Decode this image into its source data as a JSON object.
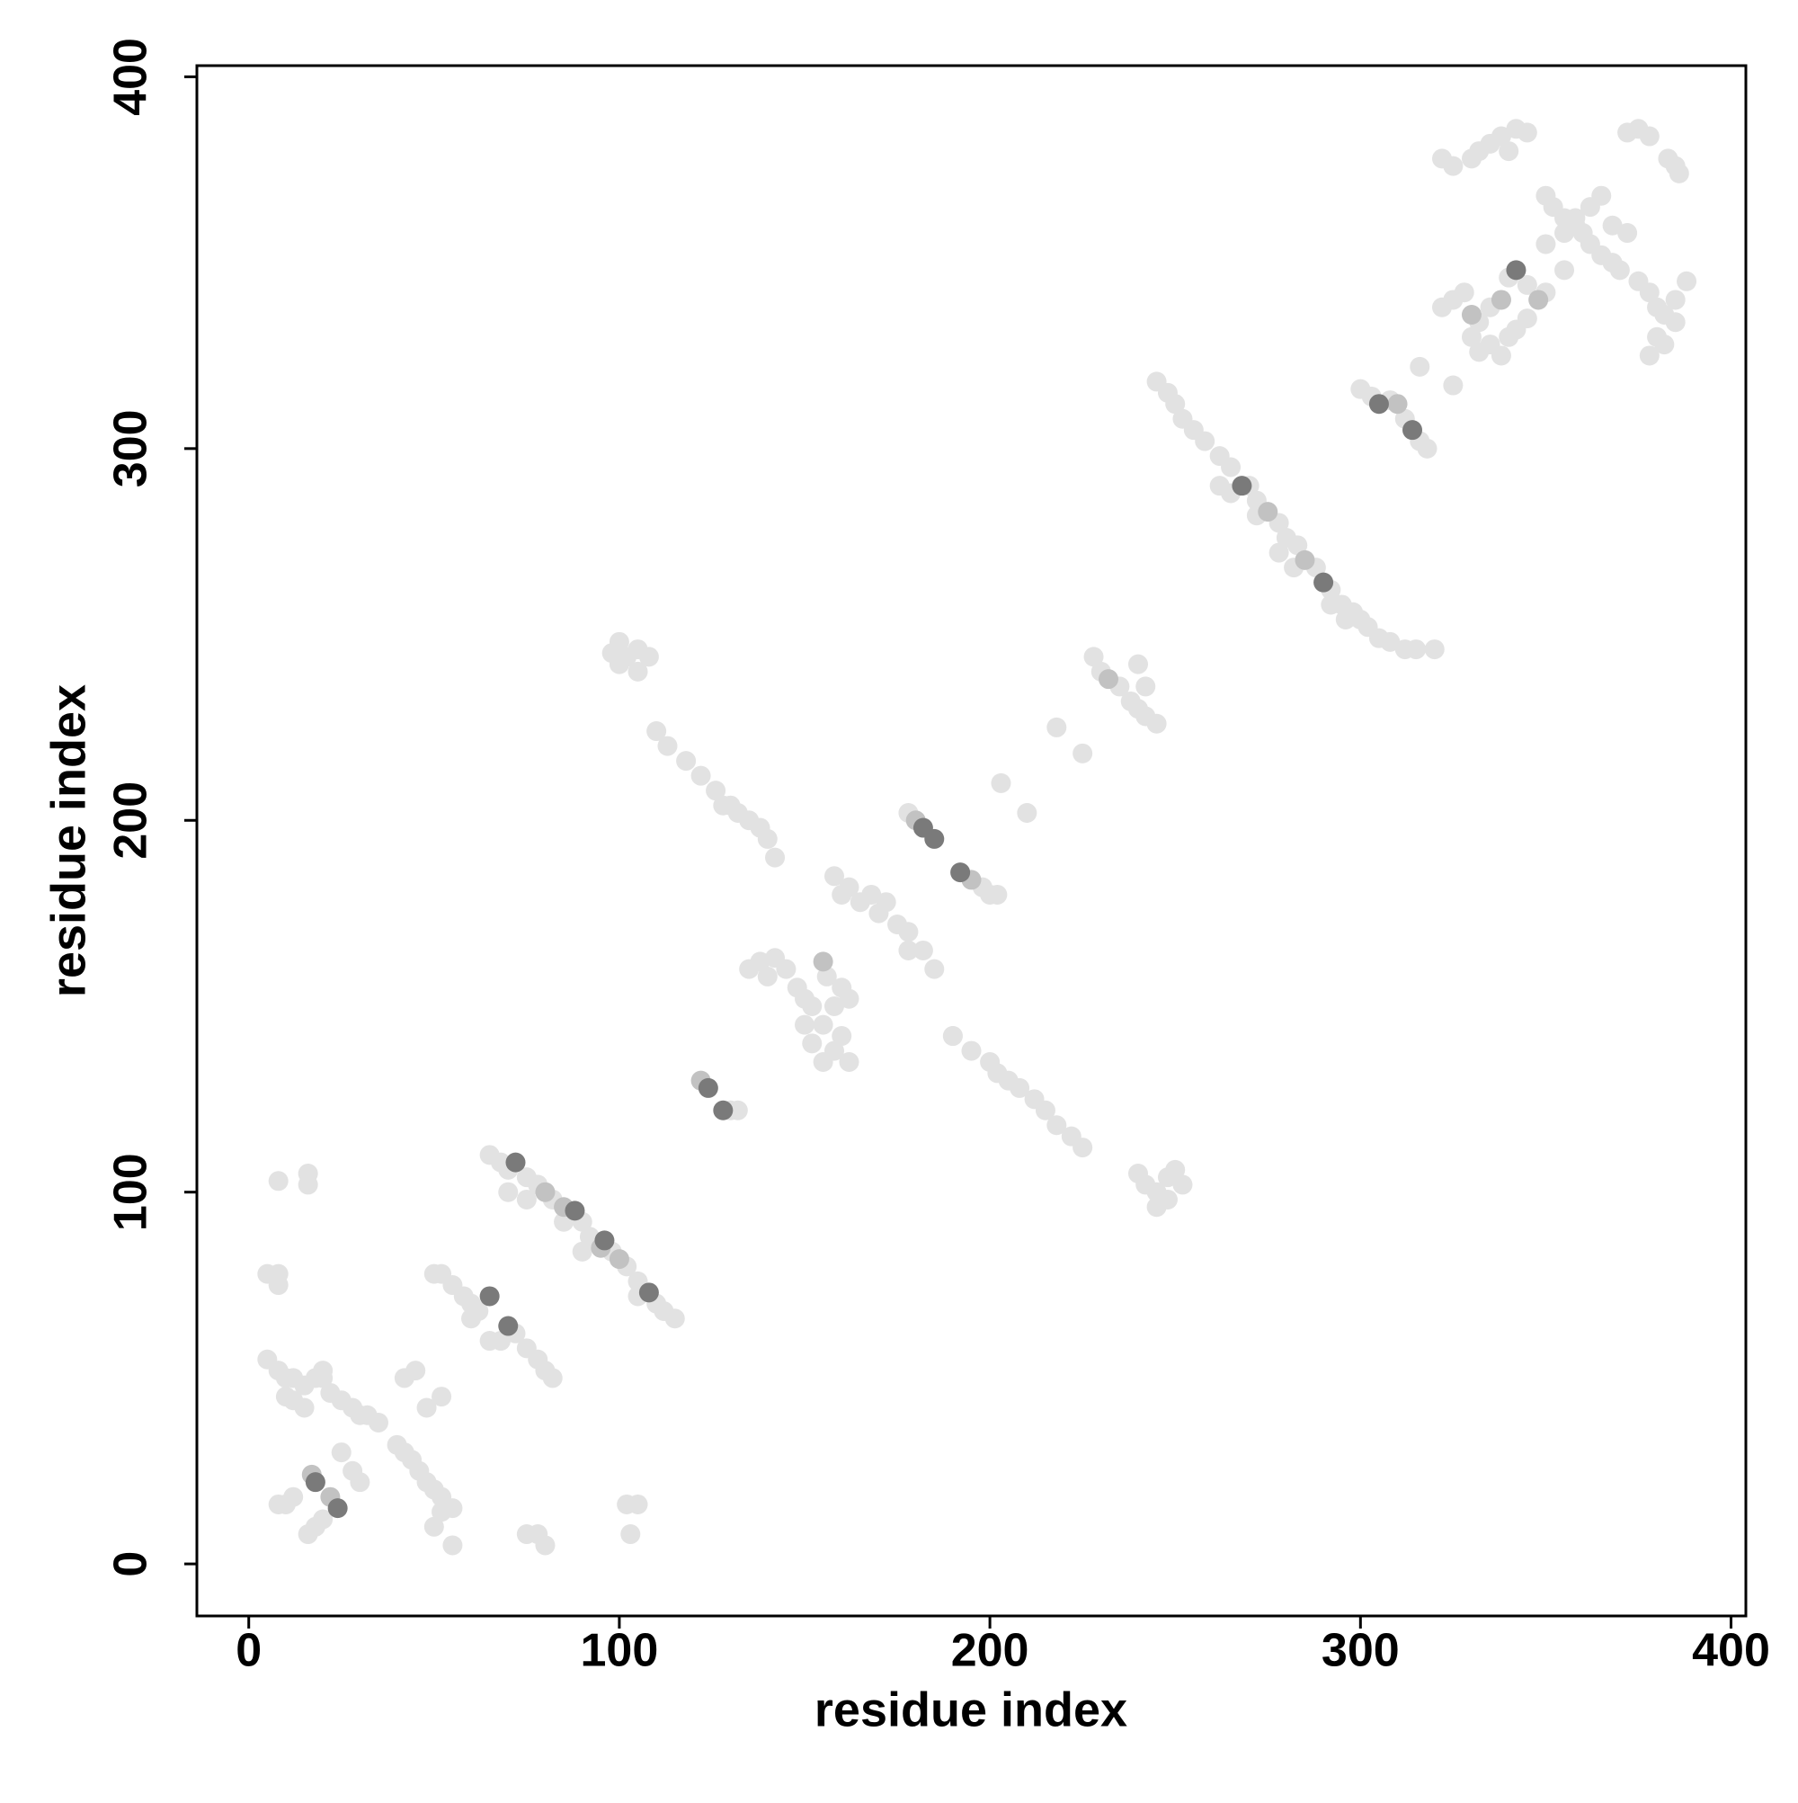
{
  "chart_data": {
    "type": "scatter",
    "xlabel": "residue index",
    "ylabel": "residue index",
    "xlim": [
      -14,
      404
    ],
    "ylim": [
      -14,
      403
    ],
    "xticks": [
      0,
      100,
      200,
      300,
      400
    ],
    "yticks": [
      0,
      100,
      200,
      300,
      400
    ],
    "series": [
      {
        "color": "#e2e2e2",
        "x": [
          5,
          8,
          10,
          12,
          15,
          18,
          20,
          20,
          22,
          25,
          28,
          30,
          32,
          35,
          40,
          42,
          44,
          46,
          48,
          50,
          52,
          55,
          52,
          50,
          55,
          10,
          12,
          15,
          5,
          8,
          8,
          8,
          16,
          16,
          10,
          8,
          12,
          16,
          18,
          20,
          25,
          28,
          30,
          45,
          42,
          48,
          52,
          75,
          78,
          80,
          102,
          105,
          103,
          65,
          68,
          70,
          75,
          78,
          82,
          90,
          92,
          98,
          102,
          105,
          110,
          112,
          115,
          70,
          75,
          85,
          90,
          105,
          50,
          52,
          55,
          58,
          60,
          62,
          72,
          75,
          78,
          80,
          82,
          65,
          68,
          60,
          130,
          132,
          110,
          113,
          118,
          122,
          126,
          128,
          130,
          132,
          135,
          138,
          140,
          142,
          98,
          100,
          102,
          105,
          108,
          105,
          100,
          135,
          138,
          140,
          142,
          145,
          148,
          150,
          152,
          156,
          160,
          162,
          158,
          155,
          152,
          160,
          158,
          162,
          155,
          150,
          158,
          160,
          162,
          165,
          168,
          170,
          172,
          175,
          178,
          182,
          185,
          178,
          178,
          190,
          198,
          200,
          202,
          203,
          210,
          218,
          225,
          190,
          195,
          200,
          202,
          205,
          208,
          212,
          215,
          218,
          222,
          225,
          228,
          230,
          235,
          238,
          240,
          242,
          245,
          240,
          242,
          240,
          242,
          245,
          248,
          250,
          252,
          245,
          248,
          245,
          248,
          250,
          252,
          255,
          258,
          262,
          265,
          270,
          272,
          278,
          280,
          283,
          288,
          292,
          295,
          298,
          300,
          302,
          305,
          308,
          312,
          315,
          320,
          262,
          265,
          272,
          278,
          282,
          292,
          296,
          300,
          303,
          308,
          312,
          316,
          318,
          316,
          325,
          322,
          325,
          330,
          332,
          335,
          338,
          340,
          342,
          345,
          350,
          352,
          355,
          358,
          360,
          362,
          365,
          368,
          370,
          375,
          378,
          380,
          382,
          385,
          388,
          378,
          380,
          382,
          385,
          372,
          375,
          378,
          383,
          385,
          386,
          322,
          325,
          328,
          332,
          335,
          340,
          345,
          350,
          355,
          330,
          332,
          335,
          338,
          340,
          342,
          345,
          350,
          355,
          358,
          362,
          365,
          368,
          372
        ],
        "values": [
          55,
          52,
          50,
          50,
          48,
          50,
          50,
          52,
          46,
          44,
          42,
          40,
          40,
          38,
          32,
          30,
          28,
          25,
          22,
          20,
          18,
          15,
          14,
          10,
          5,
          45,
          44,
          42,
          78,
          78,
          75,
          103,
          105,
          102,
          16,
          16,
          18,
          8,
          10,
          12,
          30,
          25,
          22,
          52,
          50,
          42,
          45,
          8,
          8,
          5,
          16,
          16,
          8,
          110,
          108,
          106,
          104,
          102,
          98,
          92,
          88,
          84,
          80,
          76,
          70,
          68,
          66,
          100,
          98,
          92,
          84,
          72,
          78,
          78,
          75,
          72,
          70,
          68,
          62,
          58,
          55,
          52,
          50,
          60,
          60,
          66,
          122,
          122,
          224,
          220,
          216,
          212,
          208,
          204,
          204,
          202,
          200,
          198,
          195,
          190,
          245,
          248,
          244,
          246,
          244,
          240,
          242,
          160,
          162,
          158,
          163,
          160,
          155,
          152,
          150,
          158,
          155,
          152,
          150,
          145,
          140,
          142,
          138,
          135,
          135,
          145,
          185,
          180,
          182,
          178,
          180,
          175,
          178,
          172,
          170,
          165,
          160,
          165,
          202,
          142,
          182,
          180,
          180,
          210,
          202,
          225,
          218,
          142,
          138,
          135,
          132,
          130,
          128,
          125,
          122,
          118,
          115,
          112,
          244,
          240,
          236,
          232,
          230,
          228,
          226,
          242,
          236,
          105,
          102,
          100,
          104,
          106,
          102,
          96,
          98,
          318,
          315,
          312,
          308,
          305,
          302,
          298,
          295,
          290,
          286,
          280,
          276,
          274,
          268,
          262,
          258,
          256,
          254,
          252,
          249,
          248,
          246,
          246,
          246,
          290,
          288,
          282,
          272,
          268,
          258,
          254,
          316,
          314,
          313,
          308,
          302,
          300,
          322,
          317,
          378,
          376,
          378,
          380,
          382,
          384,
          380,
          386,
          385,
          368,
          365,
          362,
          360,
          358,
          355,
          352,
          350,
          348,
          345,
          342,
          338,
          336,
          340,
          345,
          325,
          330,
          328,
          334,
          385,
          386,
          384,
          378,
          376,
          374,
          338,
          340,
          342,
          334,
          338,
          346,
          344,
          342,
          348,
          330,
          326,
          328,
          325,
          330,
          332,
          335,
          355,
          358,
          362,
          365,
          368,
          360,
          358
        ]
      },
      {
        "color": "#c2c2c2",
        "x": [
          17,
          22,
          155,
          232,
          348,
          85,
          95,
          100,
          180,
          195,
          285,
          275,
          310,
          338,
          330,
          80,
          122
        ],
        "values": [
          24,
          18,
          162,
          238,
          340,
          96,
          85,
          82,
          200,
          184,
          270,
          283,
          312,
          340,
          336,
          100,
          130
        ]
      },
      {
        "color": "#7a7a7a",
        "x": [
          18,
          24,
          72,
          88,
          96,
          108,
          65,
          70,
          124,
          128,
          182,
          185,
          192,
          305,
          314,
          342,
          268,
          290
        ],
        "values": [
          22,
          15,
          108,
          95,
          87,
          73,
          72,
          64,
          128,
          122,
          198,
          195,
          186,
          312,
          305,
          348,
          290,
          264
        ]
      }
    ]
  }
}
